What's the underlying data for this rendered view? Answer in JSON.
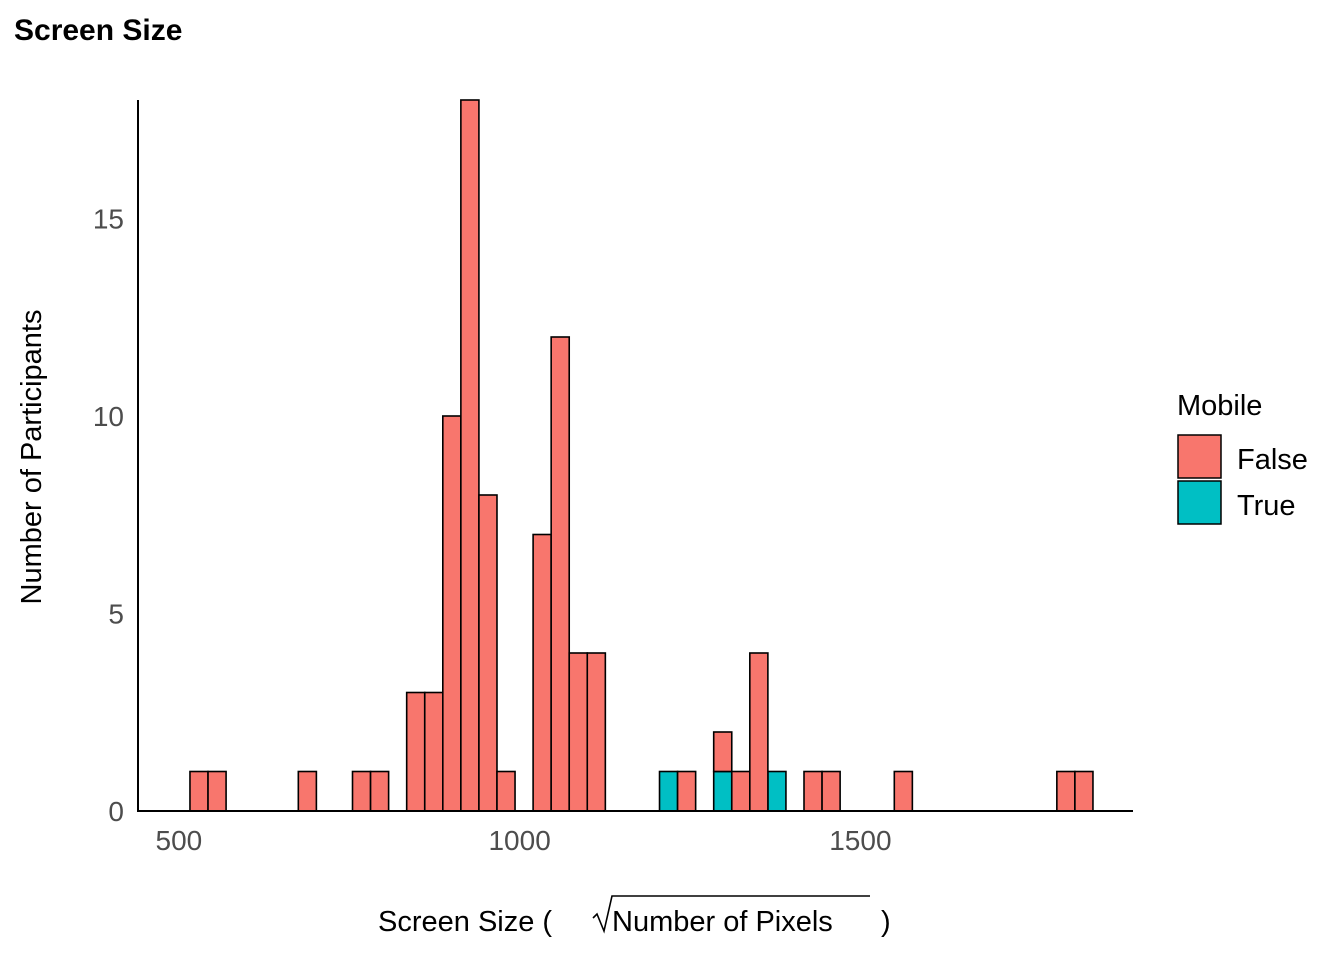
{
  "chart_data": {
    "type": "bar",
    "subtype": "stacked-histogram",
    "title": "Screen Size",
    "xlabel_prefix": "Screen Size (",
    "xlabel_radicand": "Number of Pixels",
    "xlabel_suffix": ")",
    "ylabel": "Number of Participants",
    "xlim": [
      440,
      1900
    ],
    "ylim": [
      0,
      18
    ],
    "bin_width": 26.5,
    "x_ticks": [
      500,
      1000,
      1500
    ],
    "y_ticks": [
      0,
      5,
      10,
      15
    ],
    "grid": false,
    "legend": {
      "title": "Mobile",
      "position": "right",
      "entries": [
        {
          "label": "False",
          "color": "#F8766D"
        },
        {
          "label": "True",
          "color": "#00BFC4"
        }
      ]
    },
    "series": [
      {
        "name": "False",
        "color": "#F8766D",
        "bins": [
          {
            "x": 529.5,
            "count": 1
          },
          {
            "x": 556.0,
            "count": 1
          },
          {
            "x": 688.5,
            "count": 1
          },
          {
            "x": 768.0,
            "count": 1
          },
          {
            "x": 794.5,
            "count": 1
          },
          {
            "x": 847.5,
            "count": 3
          },
          {
            "x": 874.0,
            "count": 3
          },
          {
            "x": 900.5,
            "count": 10
          },
          {
            "x": 927.0,
            "count": 18
          },
          {
            "x": 953.5,
            "count": 8
          },
          {
            "x": 980.0,
            "count": 1
          },
          {
            "x": 1033.0,
            "count": 7
          },
          {
            "x": 1059.5,
            "count": 12
          },
          {
            "x": 1086.0,
            "count": 4
          },
          {
            "x": 1112.5,
            "count": 4
          },
          {
            "x": 1245.0,
            "count": 1
          },
          {
            "x": 1298.0,
            "count": 1
          },
          {
            "x": 1324.5,
            "count": 1
          },
          {
            "x": 1351.0,
            "count": 4
          },
          {
            "x": 1430.5,
            "count": 1
          },
          {
            "x": 1457.0,
            "count": 1
          },
          {
            "x": 1563.0,
            "count": 1
          },
          {
            "x": 1801.5,
            "count": 1
          },
          {
            "x": 1828.0,
            "count": 1
          }
        ]
      },
      {
        "name": "True",
        "color": "#00BFC4",
        "bins": [
          {
            "x": 1218.5,
            "count": 1
          },
          {
            "x": 1298.0,
            "count": 1
          },
          {
            "x": 1377.5,
            "count": 1
          }
        ]
      }
    ]
  }
}
